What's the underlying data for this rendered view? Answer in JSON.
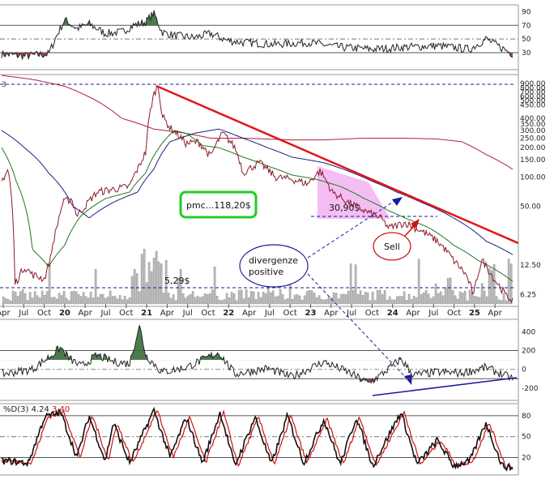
{
  "colors": {
    "rsi_line": "#222222",
    "rsi_above": "#3a6b3a",
    "rsi_below": "#8b3a3a",
    "price": "#8b1a2a",
    "ma_short": "#1e7a1e",
    "ma_mid": "#1a237e",
    "ma_long": "#b0203a",
    "trendline": "#e0161a",
    "volume": "#b9b9b9",
    "dashed": "#1a1aa0",
    "pink_zone": "#f2b3f2",
    "stoch_k": "#111111",
    "stoch_d": "#d01010",
    "cci_pos": "#3a6b3a",
    "cci_neg": "#8b3a3a"
  },
  "x_axis": {
    "labels": [
      "Apr",
      "Jul",
      "Oct",
      "20",
      "Apr",
      "Jul",
      "Oct",
      "21",
      "Apr",
      "Jul",
      "Oct",
      "22",
      "Apr",
      "Jul",
      "Oct",
      "23",
      "Apr",
      "Jul",
      "Oct",
      "24",
      "Apr",
      "Jul",
      "Oct",
      "25",
      "Apr"
    ],
    "bold": [
      "20",
      "21",
      "22",
      "23",
      "24",
      "25"
    ]
  },
  "panels": {
    "rsi": {
      "ticks": [
        "90",
        "70",
        "50",
        "30"
      ],
      "values": [
        90,
        70,
        50,
        30
      ],
      "ylim": [
        5,
        100
      ]
    },
    "price": {
      "left_label": "3",
      "ticks": [
        "900.00",
        "800.00",
        "700.00",
        "600.00",
        "500.00",
        "450.00",
        "400.00",
        "350.00",
        "300.00",
        "250.00",
        "200.00",
        "150.00",
        "100.00",
        "50.00",
        "12.50",
        "6.25"
      ],
      "values": [
        900,
        800,
        700,
        600,
        500,
        450,
        400,
        350,
        300,
        250,
        200,
        150,
        100,
        50,
        12.5,
        6.25
      ]
    },
    "cci": {
      "ticks": [
        "400",
        "200",
        "0",
        "-200"
      ],
      "values": [
        400,
        200,
        0,
        -200
      ],
      "ylim": [
        -330,
        480
      ]
    },
    "stoch": {
      "legend_label": "%D(3)",
      "legend_k": "4.24",
      "legend_d": "3.40",
      "ticks": [
        "80",
        "50",
        "20"
      ],
      "values": [
        80,
        50,
        20
      ],
      "ylim": [
        -5,
        95
      ]
    }
  },
  "annotations": {
    "pmc": "pmc...118,20$",
    "price_low": "5,29$",
    "price_mid": "30,90$",
    "sell": "Sell",
    "divergence_line1": "divergenze",
    "divergence_line2": "positive"
  },
  "chart_data": {
    "type": "line",
    "x_unit": "quarter-year",
    "price_series": {
      "name": "",
      "x": [
        "2019-04",
        "2019-07",
        "2019-10",
        "2020-01",
        "2020-04",
        "2020-07",
        "2020-10",
        "2021-01",
        "2021-02",
        "2021-04",
        "2021-07",
        "2021-10",
        "2022-01",
        "2022-04",
        "2022-07",
        "2022-10",
        "2023-01",
        "2023-04",
        "2023-07",
        "2023-10",
        "2024-01",
        "2024-04",
        "2024-07",
        "2024-10",
        "2025-01",
        "2025-04"
      ],
      "y": [
        100,
        13,
        9,
        30,
        50,
        75,
        80,
        200,
        850,
        400,
        260,
        320,
        190,
        160,
        130,
        110,
        100,
        60,
        35,
        32,
        40,
        28,
        18,
        6.5,
        12,
        5.5
      ]
    },
    "ma_long": [
      900,
      620,
      380,
      260,
      230,
      220,
      220,
      230,
      260,
      300,
      320,
      330,
      320,
      300,
      270,
      240,
      210,
      180,
      160,
      150,
      140,
      130,
      120,
      110,
      95,
      80
    ],
    "trendline": {
      "x": [
        "2021-02",
        "2025-04"
      ],
      "y": [
        850,
        15
      ]
    },
    "rsi_range": [
      12,
      88
    ],
    "cci_range": [
      -200,
      470
    ],
    "stoch_range": [
      5,
      88
    ]
  }
}
